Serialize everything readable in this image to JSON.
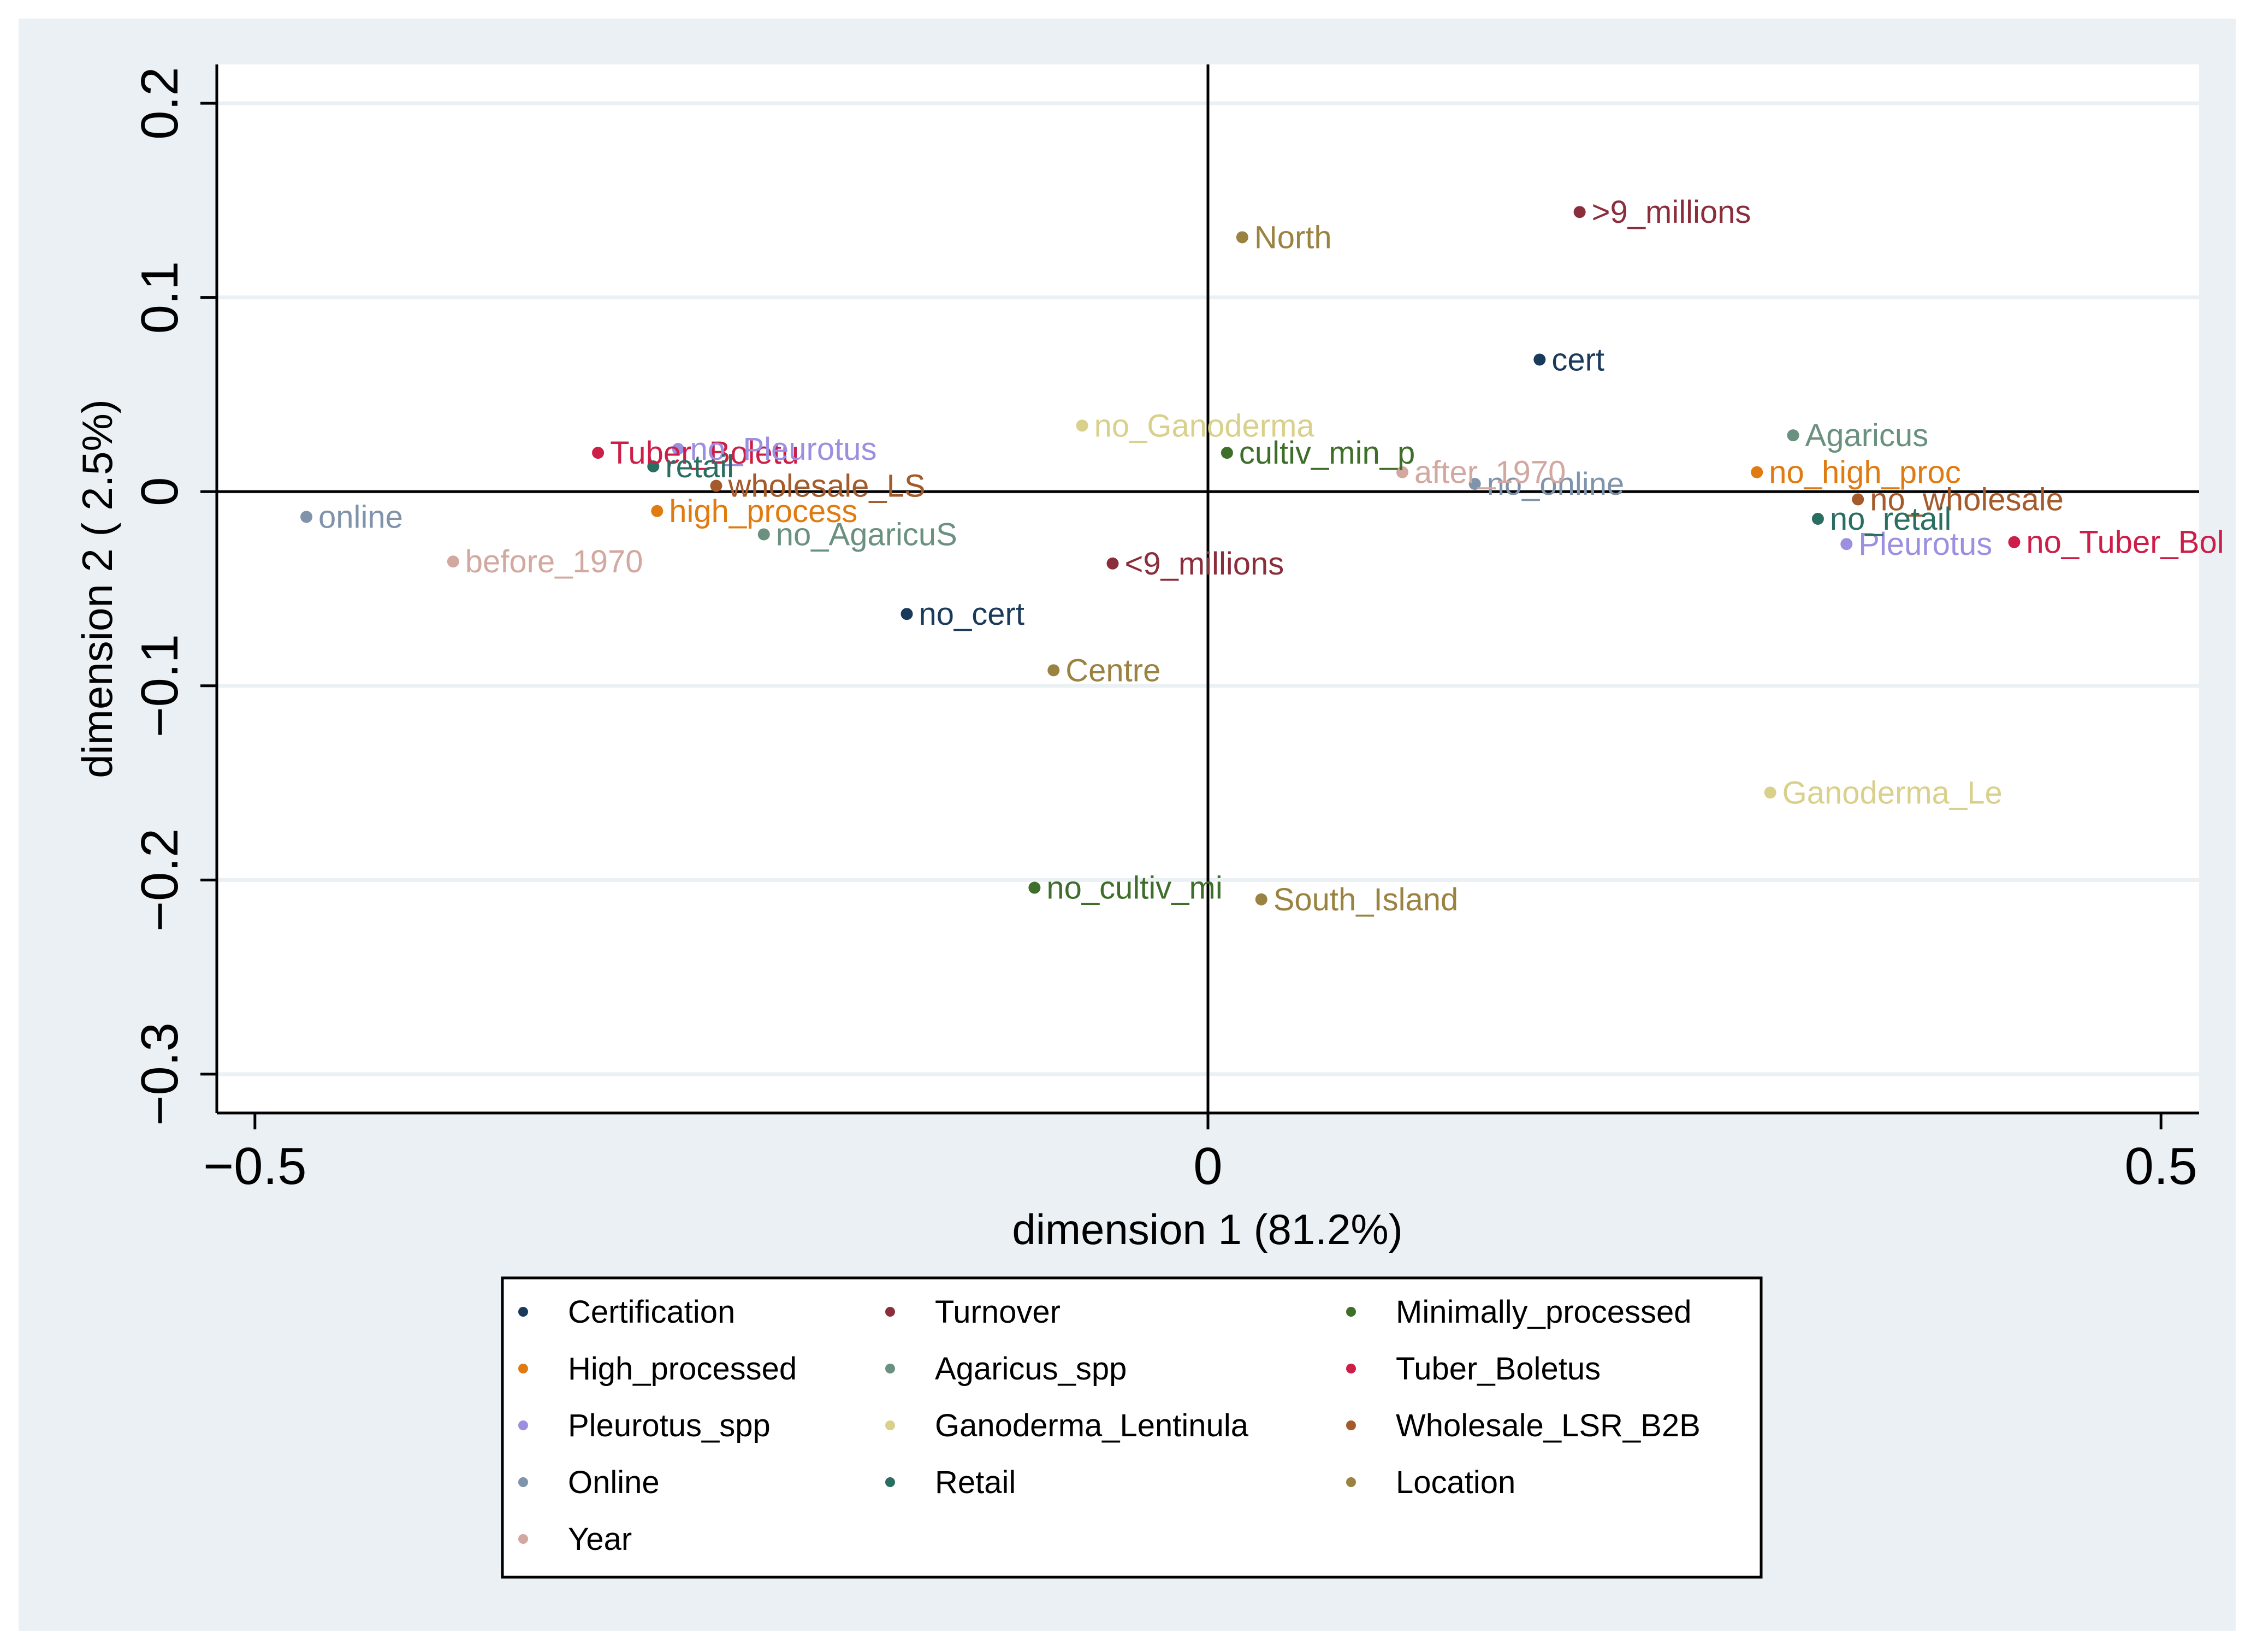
{
  "chart_data": {
    "type": "scatter",
    "title": "",
    "xlabel": "dimension 1 (81.2%)",
    "ylabel": "dimension 2 ( 2.5%)",
    "xlim": [
      -0.52,
      0.52
    ],
    "ylim": [
      -0.32,
      0.22
    ],
    "xticks": [
      {
        "value": -0.5,
        "label": "−0.5"
      },
      {
        "value": 0,
        "label": "0"
      },
      {
        "value": 0.5,
        "label": "0.5"
      }
    ],
    "yticks": [
      {
        "value": 0.2,
        "label": "0.2"
      },
      {
        "value": 0.1,
        "label": "0.1"
      },
      {
        "value": 0,
        "label": "0"
      },
      {
        "value": -0.1,
        "label": "−0.1"
      },
      {
        "value": -0.2,
        "label": "−0.2"
      },
      {
        "value": -0.3,
        "label": "−0.3"
      }
    ],
    "grid": true,
    "reference_lines": {
      "x": 0,
      "y": 0
    },
    "legend_position": "bottom",
    "series": [
      {
        "name": "Certification",
        "color": "#1a3a5c",
        "points": [
          {
            "x": 0.174,
            "y": 0.068,
            "label": "cert"
          },
          {
            "x": -0.158,
            "y": -0.063,
            "label": "no_cert"
          }
        ]
      },
      {
        "name": "Turnover",
        "color": "#8b2e3c",
        "points": [
          {
            "x": 0.195,
            "y": 0.144,
            "label": ">9_millions"
          },
          {
            "x": -0.05,
            "y": -0.037,
            "label": "<9_millions"
          }
        ]
      },
      {
        "name": "Minimally_processed",
        "color": "#3f6e2a",
        "points": [
          {
            "x": 0.01,
            "y": 0.02,
            "label": "cultiv_min_p"
          },
          {
            "x": -0.091,
            "y": -0.204,
            "label": "no_cultiv_mi"
          }
        ]
      },
      {
        "name": "High_processed",
        "color": "#e07b12",
        "points": [
          {
            "x": -0.289,
            "y": -0.01,
            "label": "high_process"
          },
          {
            "x": 0.288,
            "y": 0.01,
            "label": "no_high_proc"
          }
        ]
      },
      {
        "name": "Agaricus_spp",
        "color": "#6a9080",
        "points": [
          {
            "x": 0.307,
            "y": 0.029,
            "label": "Agaricus"
          },
          {
            "x": -0.233,
            "y": -0.022,
            "label": "no_AgaricuS"
          }
        ]
      },
      {
        "name": "Tuber_Boletus",
        "color": "#cc1e48",
        "points": [
          {
            "x": -0.32,
            "y": 0.02,
            "label": "Tuber_Boletu"
          },
          {
            "x": 0.423,
            "y": -0.026,
            "label": "no_Tuber_Bol"
          }
        ]
      },
      {
        "name": "Pleurotus_spp",
        "color": "#9b8fe0",
        "points": [
          {
            "x": -0.278,
            "y": 0.022,
            "label": "no_Pleurotus"
          },
          {
            "x": 0.335,
            "y": -0.027,
            "label": "Pleurotus"
          }
        ]
      },
      {
        "name": "Ganoderma_Lentinula",
        "color": "#d9d08c",
        "points": [
          {
            "x": -0.066,
            "y": 0.034,
            "label": "no_Ganoderma"
          },
          {
            "x": 0.295,
            "y": -0.155,
            "label": "Ganoderma_Le"
          }
        ]
      },
      {
        "name": "Wholesale_LSR_B2B",
        "color": "#a45a2a",
        "points": [
          {
            "x": -0.258,
            "y": 0.003,
            "label": "wholesale_LS"
          },
          {
            "x": 0.341,
            "y": -0.004,
            "label": "no_wholesale"
          }
        ]
      },
      {
        "name": "Online",
        "color": "#7f93ab",
        "points": [
          {
            "x": -0.473,
            "y": -0.013,
            "label": "online"
          },
          {
            "x": 0.14,
            "y": 0.004,
            "label": "no_online"
          }
        ]
      },
      {
        "name": "Retail",
        "color": "#2a6e62",
        "points": [
          {
            "x": -0.291,
            "y": 0.013,
            "label": "retail"
          },
          {
            "x": 0.32,
            "y": -0.014,
            "label": "no_retail"
          }
        ]
      },
      {
        "name": "Location",
        "color": "#9a8240",
        "points": [
          {
            "x": 0.018,
            "y": 0.131,
            "label": "North"
          },
          {
            "x": -0.081,
            "y": -0.092,
            "label": "Centre"
          },
          {
            "x": 0.028,
            "y": -0.21,
            "label": "South_Island"
          }
        ]
      },
      {
        "name": "Year",
        "color": "#d2a8a0",
        "points": [
          {
            "x": -0.396,
            "y": -0.036,
            "label": "before_1970"
          },
          {
            "x": 0.102,
            "y": 0.01,
            "label": "after_1970"
          }
        ]
      }
    ],
    "legend_entries": [
      "Certification",
      "Turnover",
      "Minimally_processed",
      "High_processed",
      "Agaricus_spp",
      "Tuber_Boletus",
      "Pleurotus_spp",
      "Ganoderma_Lentinula",
      "Wholesale_LSR_B2B",
      "Online",
      "Retail",
      "Location",
      "Year"
    ]
  }
}
